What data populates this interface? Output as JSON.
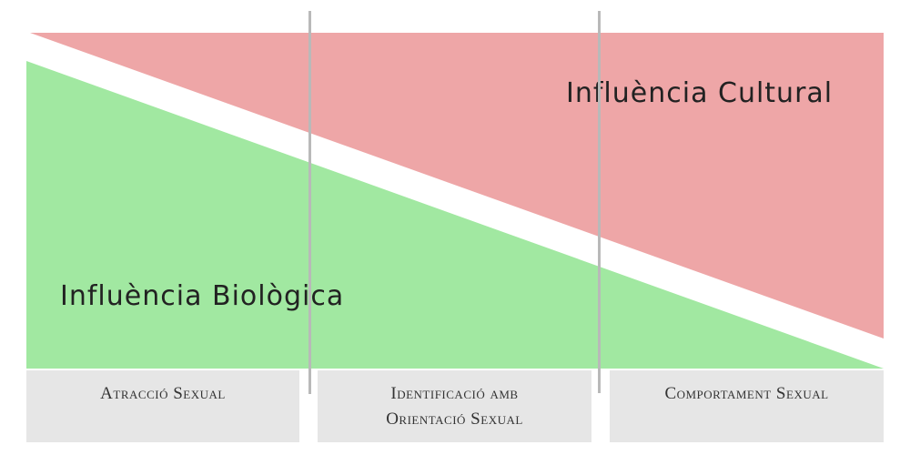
{
  "regions": {
    "cultural": {
      "label": "Influència Cultural",
      "color": "#eea6a7"
    },
    "biological": {
      "label": "Influència Biològica",
      "color": "#a1e8a1"
    }
  },
  "categories": [
    {
      "label": "Atracció Sexual"
    },
    {
      "label": "Identificació amb\nOrientació Sexual"
    },
    {
      "label": "Comportament Sexual"
    }
  ]
}
